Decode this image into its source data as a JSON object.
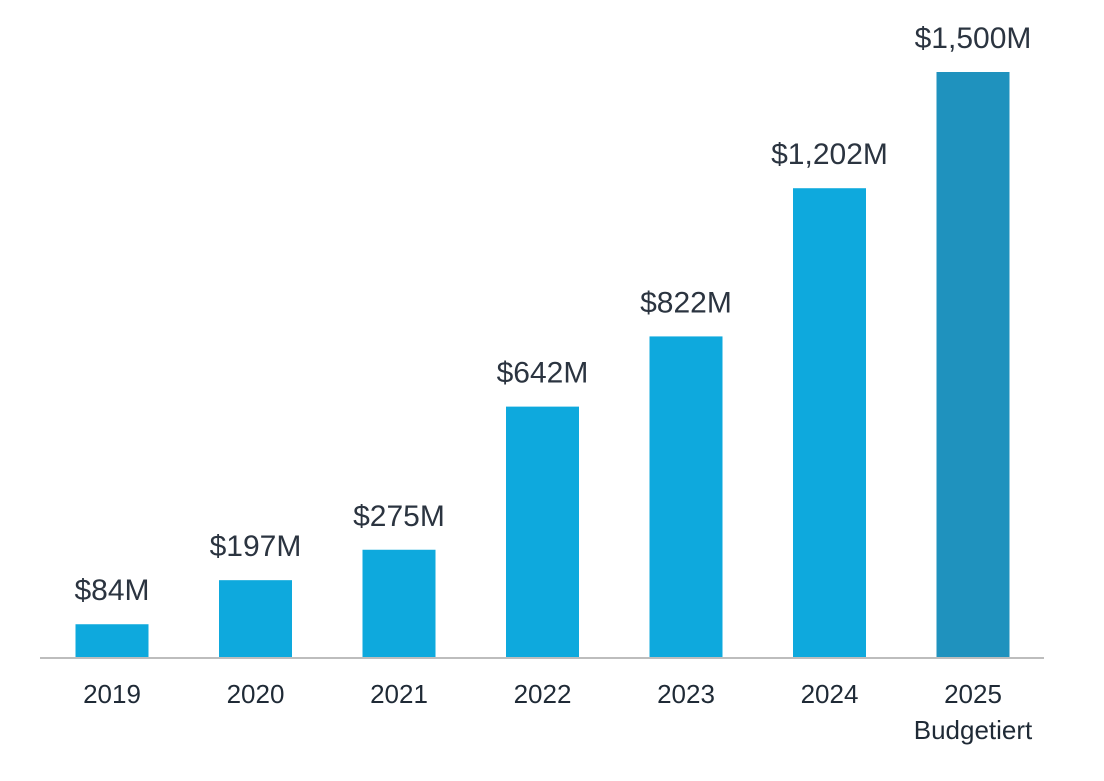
{
  "chart_data": {
    "type": "bar",
    "categories": [
      "2019",
      "2020",
      "2021",
      "2022",
      "2023",
      "2024",
      "2025"
    ],
    "category_sublabels": [
      "",
      "",
      "",
      "",
      "",
      "",
      "Budgetiert"
    ],
    "values": [
      84,
      197,
      275,
      642,
      822,
      1202,
      1500
    ],
    "value_labels": [
      "$84M",
      "$197M",
      "$275M",
      "$642M",
      "$822M",
      "$1,202M",
      "$1,500M"
    ],
    "ylim": [
      0,
      1500
    ],
    "grid": false,
    "legend": "none",
    "colors": {
      "bar": "#0ea9dd",
      "highlight_bar": "#1f92be",
      "axis": "#bdbdbd",
      "label_text": "#2b3440"
    },
    "highlight_index": 6
  }
}
